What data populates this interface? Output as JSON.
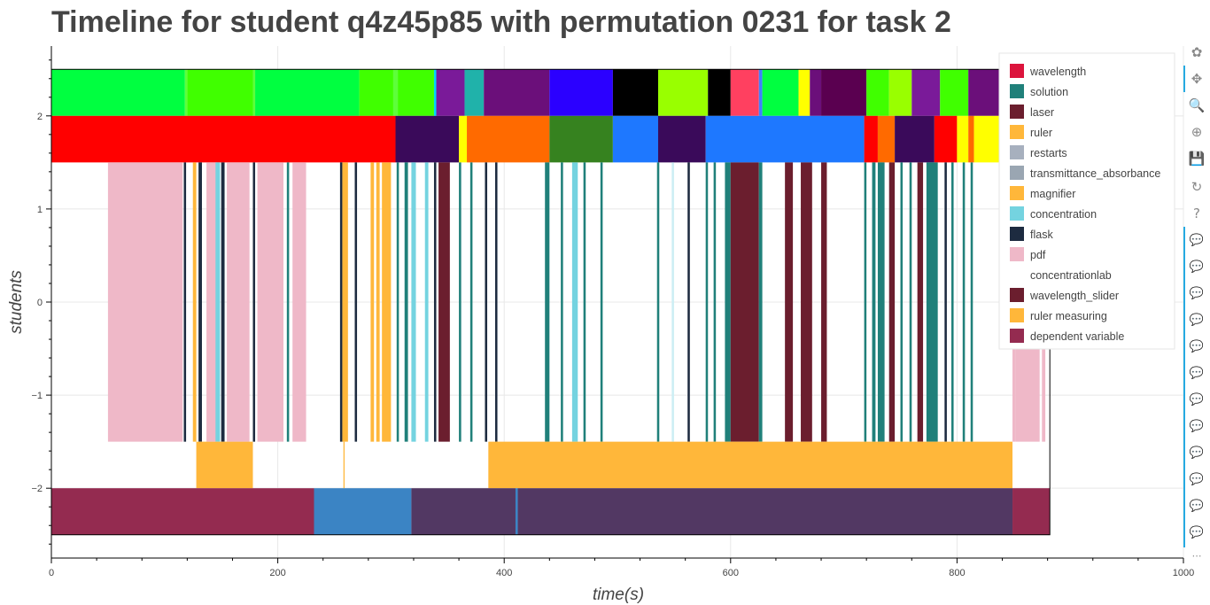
{
  "chart_data": {
    "type": "timeline",
    "title": "Timeline for student q4z45p85 with permutation 0231 for task 2",
    "xlabel": "time(s)",
    "ylabel": "students",
    "xlim": [
      0,
      1000
    ],
    "ylim": [
      -2.75,
      2.75
    ],
    "x_ticks": [
      0,
      200,
      400,
      600,
      800,
      1000
    ],
    "y_ticks": [
      -2,
      -1,
      0,
      1,
      2
    ],
    "y_tick_labels": [
      "−2",
      "−1",
      "0",
      "1",
      "2"
    ],
    "grid": true,
    "legend_position": "top-right",
    "legend": [
      {
        "label": "wavelength",
        "color": "#dc143c"
      },
      {
        "label": "solution",
        "color": "#20807a"
      },
      {
        "label": "laser",
        "color": "#6b1e2e"
      },
      {
        "label": "ruler",
        "color": "#ffb73a"
      },
      {
        "label": "restarts",
        "color": "#a7b0be"
      },
      {
        "label": "transmittance_absorbance",
        "color": "#9aa6b2"
      },
      {
        "label": "magnifier",
        "color": "#ffb73a"
      },
      {
        "label": "concentration",
        "color": "#74d3e0"
      },
      {
        "label": "flask",
        "color": "#1d2b40"
      },
      {
        "label": "pdf",
        "color": "#efb8c8"
      },
      {
        "label": "concentrationlab",
        "color": "#ffffff"
      },
      {
        "label": "wavelength_slider",
        "color": "#6b1e2e"
      },
      {
        "label": "ruler measuring",
        "color": "#ffb73a"
      },
      {
        "label": "dependent variable",
        "color": "#942b50"
      }
    ],
    "rows": [
      {
        "y0": 2.0,
        "y1": 2.5,
        "segments": [
          [
            0,
            118,
            "#00ff40"
          ],
          [
            118,
            120,
            "#5dff3a"
          ],
          [
            120,
            178,
            "#40ff00"
          ],
          [
            178,
            180,
            "#5dff3a"
          ],
          [
            180,
            272,
            "#00ff40"
          ],
          [
            272,
            302,
            "#40ff00"
          ],
          [
            302,
            306,
            "#5dff3a"
          ],
          [
            306,
            338,
            "#40ff00"
          ],
          [
            338,
            340,
            "#00d4ff"
          ],
          [
            340,
            365,
            "#7a1a99"
          ],
          [
            365,
            382,
            "#20b2aa"
          ],
          [
            382,
            440,
            "#6b0f7a"
          ],
          [
            440,
            496,
            "#2b00ff"
          ],
          [
            496,
            536,
            "#000000"
          ],
          [
            536,
            580,
            "#99ff00"
          ],
          [
            580,
            600,
            "#000000"
          ],
          [
            600,
            625,
            "#ff4060"
          ],
          [
            625,
            628,
            "#4080ff"
          ],
          [
            628,
            660,
            "#00ff40"
          ],
          [
            660,
            670,
            "#ffff00"
          ],
          [
            670,
            680,
            "#6b0f7a"
          ],
          [
            680,
            720,
            "#5a0050"
          ],
          [
            720,
            740,
            "#40ff00"
          ],
          [
            740,
            760,
            "#99ff00"
          ],
          [
            760,
            785,
            "#7a1a99"
          ],
          [
            785,
            810,
            "#40ff00"
          ],
          [
            810,
            882,
            "#6b0f7a"
          ]
        ]
      },
      {
        "y0": 1.5,
        "y1": 2.0,
        "segments": [
          [
            0,
            304,
            "#ff0000"
          ],
          [
            304,
            360,
            "#3a0a5a"
          ],
          [
            360,
            367,
            "#ffff00"
          ],
          [
            367,
            440,
            "#ff6a00"
          ],
          [
            440,
            496,
            "#36821f"
          ],
          [
            496,
            536,
            "#1e78ff"
          ],
          [
            536,
            578,
            "#3a0a5a"
          ],
          [
            578,
            718,
            "#1e78ff"
          ],
          [
            718,
            730,
            "#ff0000"
          ],
          [
            730,
            745,
            "#ff6a00"
          ],
          [
            745,
            780,
            "#3a0a5a"
          ],
          [
            780,
            800,
            "#ff0000"
          ],
          [
            800,
            810,
            "#ffff00"
          ],
          [
            810,
            815,
            "#ff6a00"
          ],
          [
            815,
            882,
            "#ffff00"
          ]
        ]
      },
      {
        "y0": -1.5,
        "y1": 1.5,
        "segments": [
          [
            50,
            116,
            "#efb8c8"
          ],
          [
            117,
            119,
            "#1d2b40"
          ],
          [
            125,
            128,
            "#ffb73a"
          ],
          [
            130,
            133,
            "#1d2b40"
          ],
          [
            137,
            146,
            "#efb8c8"
          ],
          [
            145,
            149,
            "#74d3e0"
          ],
          [
            150,
            153,
            "#1d2b40"
          ],
          [
            155,
            175,
            "#efb8c8"
          ],
          [
            178,
            180,
            "#1d2b40"
          ],
          [
            182,
            205,
            "#efb8c8"
          ],
          [
            208,
            210,
            "#20807a"
          ],
          [
            213,
            225,
            "#efb8c8"
          ],
          [
            255,
            257,
            "#1d2b40"
          ],
          [
            257,
            262,
            "#ffb73a"
          ],
          [
            268,
            270,
            "#1d2b40"
          ],
          [
            282,
            285,
            "#ffb73a"
          ],
          [
            287,
            290,
            "#ffb73a"
          ],
          [
            292,
            300,
            "#ffb73a"
          ],
          [
            305,
            307,
            "#20807a"
          ],
          [
            312,
            315,
            "#20807a"
          ],
          [
            318,
            322,
            "#74d3e0"
          ],
          [
            330,
            333,
            "#74d3e0"
          ],
          [
            338,
            340,
            "#1d2b40"
          ],
          [
            342,
            352,
            "#6b1e2e"
          ],
          [
            360,
            362,
            "#20807a"
          ],
          [
            370,
            372,
            "#20807a"
          ],
          [
            383,
            385,
            "#1d2b40"
          ],
          [
            392,
            394,
            "#1d2b40"
          ],
          [
            436,
            440,
            "#20807a"
          ],
          [
            450,
            452,
            "#20807a"
          ],
          [
            460,
            465,
            "#74d3e0"
          ],
          [
            470,
            472,
            "#20807a"
          ],
          [
            485,
            487,
            "#20807a"
          ],
          [
            535,
            537,
            "#20807a"
          ],
          [
            548,
            550,
            "#cceef4"
          ],
          [
            562,
            564,
            "#1d2b40"
          ],
          [
            578,
            580,
            "#20807a"
          ],
          [
            585,
            587,
            "#20807a"
          ],
          [
            595,
            600,
            "#20807a"
          ],
          [
            600,
            625,
            "#6b1e2e"
          ],
          [
            625,
            628,
            "#20807a"
          ],
          [
            648,
            655,
            "#6b1e2e"
          ],
          [
            662,
            672,
            "#6b1e2e"
          ],
          [
            680,
            685,
            "#6b1e2e"
          ],
          [
            718,
            720,
            "#20807a"
          ],
          [
            725,
            728,
            "#20807a"
          ],
          [
            730,
            736,
            "#20807a"
          ],
          [
            740,
            745,
            "#6b1e2e"
          ],
          [
            750,
            752,
            "#20807a"
          ],
          [
            758,
            760,
            "#20807a"
          ],
          [
            765,
            770,
            "#6b1e2e"
          ],
          [
            773,
            783,
            "#20807a"
          ],
          [
            789,
            791,
            "#1d2b40"
          ],
          [
            795,
            797,
            "#20807a"
          ],
          [
            805,
            807,
            "#20807a"
          ],
          [
            812,
            814,
            "#20807a"
          ],
          [
            849,
            852,
            "#efb8c8"
          ],
          [
            852,
            873,
            "#efb8c8"
          ],
          [
            875,
            878,
            "#efb8c8"
          ]
        ]
      },
      {
        "y0": -2.0,
        "y1": -1.5,
        "segments": [
          [
            128,
            178,
            "#ffb73a"
          ],
          [
            258,
            259,
            "#ffb73a"
          ],
          [
            386,
            849,
            "#ffb73a"
          ]
        ]
      },
      {
        "y0": -2.5,
        "y1": -2.0,
        "segments": [
          [
            0,
            232,
            "#942b50"
          ],
          [
            232,
            318,
            "#3b84c4"
          ],
          [
            318,
            410,
            "#523863"
          ],
          [
            410,
            412,
            "#3b84c4"
          ],
          [
            412,
            849,
            "#523863"
          ],
          [
            849,
            882,
            "#942b50"
          ]
        ]
      }
    ]
  },
  "toolbar": {
    "tools": [
      {
        "name": "bokeh-logo-icon",
        "glyph": "✿"
      },
      {
        "name": "pan-tool-icon",
        "glyph": "✥"
      },
      {
        "name": "box-zoom-icon",
        "glyph": "🔍"
      },
      {
        "name": "wheel-zoom-icon",
        "glyph": "⊕"
      },
      {
        "name": "save-icon",
        "glyph": "💾"
      },
      {
        "name": "reset-icon",
        "glyph": "↻"
      },
      {
        "name": "help-icon",
        "glyph": "?"
      },
      {
        "name": "hover-tool-icon",
        "glyph": "💬"
      }
    ],
    "more": "⋯"
  }
}
